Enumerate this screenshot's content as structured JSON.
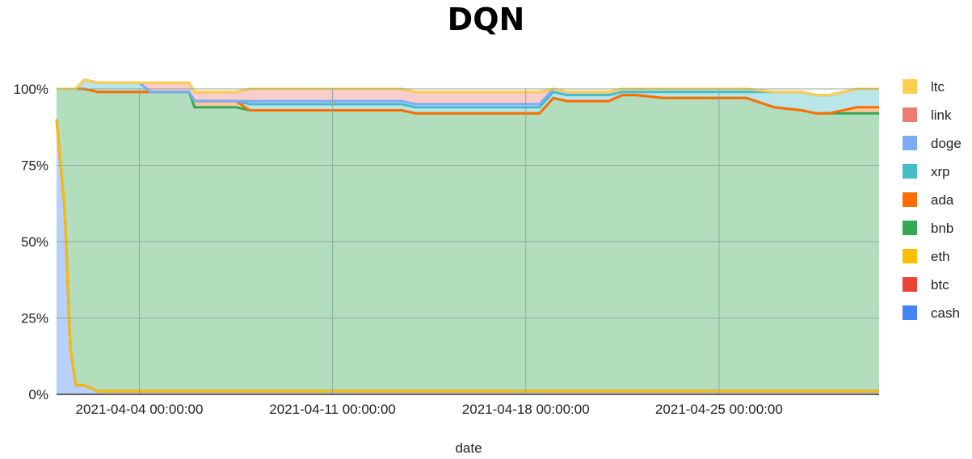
{
  "chart_data": {
    "type": "area",
    "title": "DQN",
    "xlabel": "date",
    "ylabel": "",
    "stacked": "percent",
    "ylim": [
      0,
      100
    ],
    "yticks": [
      "0%",
      "25%",
      "50%",
      "75%",
      "100%"
    ],
    "xticks": [
      "2021-04-04 00:00:00",
      "2021-04-11 00:00:00",
      "2021-04-18 00:00:00",
      "2021-04-25 00:00:00"
    ],
    "xticks_days": [
      3,
      10,
      17,
      24
    ],
    "xrange_days": [
      0.0,
      29.8
    ],
    "grid": true,
    "legend_position": "right",
    "x": [
      0,
      0.3,
      0.5,
      0.7,
      1.0,
      1.5,
      2.0,
      2.5,
      3.0,
      3.4,
      3.6,
      4.0,
      4.8,
      5.0,
      5.2,
      5.5,
      6.0,
      6.5,
      7.0,
      7.5,
      8.0,
      8.5,
      9.0,
      9.5,
      10.0,
      11.0,
      11.5,
      12.0,
      12.5,
      13.0,
      14.0,
      14.3,
      15.0,
      16.0,
      16.5,
      17.0,
      17.5,
      18.0,
      18.5,
      19.0,
      19.5,
      20.0,
      20.5,
      21.0,
      22.0,
      23.0,
      23.5,
      24.0,
      25.0,
      26.0,
      27.0,
      27.5,
      28.0,
      29.0,
      29.8
    ],
    "series": [
      {
        "name": "cash",
        "color": "#4285f4",
        "values": [
          90,
          60,
          15,
          3,
          3,
          1,
          1,
          1,
          1,
          1,
          1,
          1,
          1,
          1,
          1,
          1,
          1,
          1,
          1,
          1,
          1,
          1,
          1,
          1,
          1,
          1,
          1,
          1,
          1,
          1,
          1,
          1,
          1,
          1,
          1,
          1,
          1,
          1,
          1,
          1,
          1,
          1,
          1,
          1,
          1,
          1,
          1,
          1,
          1,
          1,
          1,
          1,
          1,
          1,
          1
        ]
      },
      {
        "name": "btc",
        "color": "#ea4335",
        "values": [
          0,
          0,
          0,
          0,
          0,
          0,
          0,
          0,
          0,
          0,
          0,
          0,
          0,
          0,
          0,
          0,
          0,
          0,
          0,
          0,
          0,
          0,
          0,
          0,
          0,
          0,
          0,
          0,
          0,
          0,
          0,
          0,
          0,
          0,
          0,
          0,
          0,
          0,
          0,
          0,
          0,
          0,
          0,
          0,
          0,
          0,
          0,
          0,
          0,
          0,
          0,
          0,
          0,
          0,
          0
        ]
      },
      {
        "name": "eth",
        "color": "#fbbc04",
        "values": [
          0,
          0,
          0,
          0,
          0,
          0,
          0,
          0,
          0,
          0,
          0,
          0,
          0,
          0,
          0,
          0,
          0,
          0,
          0,
          0,
          0,
          0,
          0,
          0,
          0,
          0,
          0,
          0,
          0,
          0,
          0,
          0,
          0,
          0,
          0,
          0,
          0,
          0,
          0,
          0,
          0,
          0,
          0,
          0,
          0,
          0,
          0,
          0,
          0,
          0,
          0,
          0,
          0,
          0,
          0
        ]
      },
      {
        "name": "bnb",
        "color": "#34a853",
        "values": [
          10,
          40,
          85,
          97,
          97,
          98,
          98,
          98,
          98,
          98,
          98,
          98,
          98,
          93,
          93,
          93,
          93,
          93,
          92,
          92,
          92,
          92,
          92,
          92,
          92,
          92,
          92,
          92,
          92,
          91,
          91,
          91,
          91,
          91,
          91,
          91,
          91,
          96,
          95,
          95,
          95,
          95,
          97,
          97,
          96,
          96,
          96,
          96,
          96,
          93,
          92,
          91,
          91,
          91,
          91
        ]
      },
      {
        "name": "ada",
        "color": "#ff6d01",
        "values": [
          0,
          0,
          0,
          0,
          0,
          0,
          0,
          0,
          0,
          0,
          0,
          0,
          0,
          2,
          2,
          2,
          2,
          2,
          0,
          0,
          0,
          0,
          0,
          0,
          0,
          0,
          0,
          0,
          0,
          0,
          0,
          0,
          0,
          0,
          0,
          0,
          0,
          0,
          0,
          0,
          0,
          0,
          0,
          0,
          0,
          0,
          0,
          0,
          0,
          0,
          0,
          0,
          0,
          2,
          2
        ]
      },
      {
        "name": "xrp",
        "color": "#46bdc6",
        "values": [
          0,
          0,
          0,
          0,
          3,
          3,
          3,
          3,
          3,
          0,
          0,
          0,
          0,
          0,
          0,
          0,
          0,
          0,
          2,
          2,
          2,
          2,
          2,
          2,
          2,
          2,
          2,
          2,
          2,
          2,
          2,
          2,
          2,
          2,
          2,
          2,
          2,
          2,
          2,
          2,
          2,
          2,
          1,
          1,
          2,
          2,
          2,
          2,
          2,
          5,
          6,
          6,
          6,
          6,
          6
        ]
      },
      {
        "name": "doge",
        "color": "#7baaf7",
        "values": [
          0,
          0,
          0,
          0,
          0,
          0,
          0,
          0,
          0,
          0,
          0,
          0,
          0,
          0,
          0,
          0,
          0,
          0,
          1,
          1,
          1,
          1,
          1,
          1,
          1,
          1,
          1,
          1,
          1,
          1,
          1,
          1,
          1,
          1,
          1,
          1,
          1,
          1,
          1,
          1,
          1,
          1,
          1,
          1,
          1,
          1,
          1,
          1,
          1,
          0,
          0,
          0,
          0,
          0,
          0
        ]
      },
      {
        "name": "link",
        "color": "#f07b72",
        "values": [
          0,
          0,
          0,
          0,
          0,
          0,
          0,
          0,
          0,
          3,
          3,
          3,
          3,
          3,
          3,
          3,
          3,
          3,
          4,
          4,
          4,
          4,
          4,
          4,
          4,
          4,
          4,
          4,
          4,
          4,
          4,
          4,
          4,
          4,
          4,
          4,
          4,
          0,
          0,
          0,
          0,
          0,
          0,
          0,
          0,
          0,
          0,
          0,
          0,
          0,
          0,
          0,
          0,
          0,
          0
        ]
      },
      {
        "name": "ltc",
        "color": "#fcd04f",
        "values": [
          0,
          0,
          0,
          0,
          0,
          0,
          0,
          0,
          0,
          0,
          0,
          0,
          0,
          0,
          0,
          0,
          0,
          0,
          0,
          0,
          0,
          0,
          0,
          0,
          0,
          0,
          0,
          0,
          0,
          0,
          0,
          0,
          0,
          0,
          0,
          0,
          0,
          0,
          0,
          0,
          0,
          0,
          0,
          0,
          0,
          0,
          0,
          0,
          0,
          0,
          0,
          0,
          0,
          0,
          0
        ]
      }
    ]
  }
}
